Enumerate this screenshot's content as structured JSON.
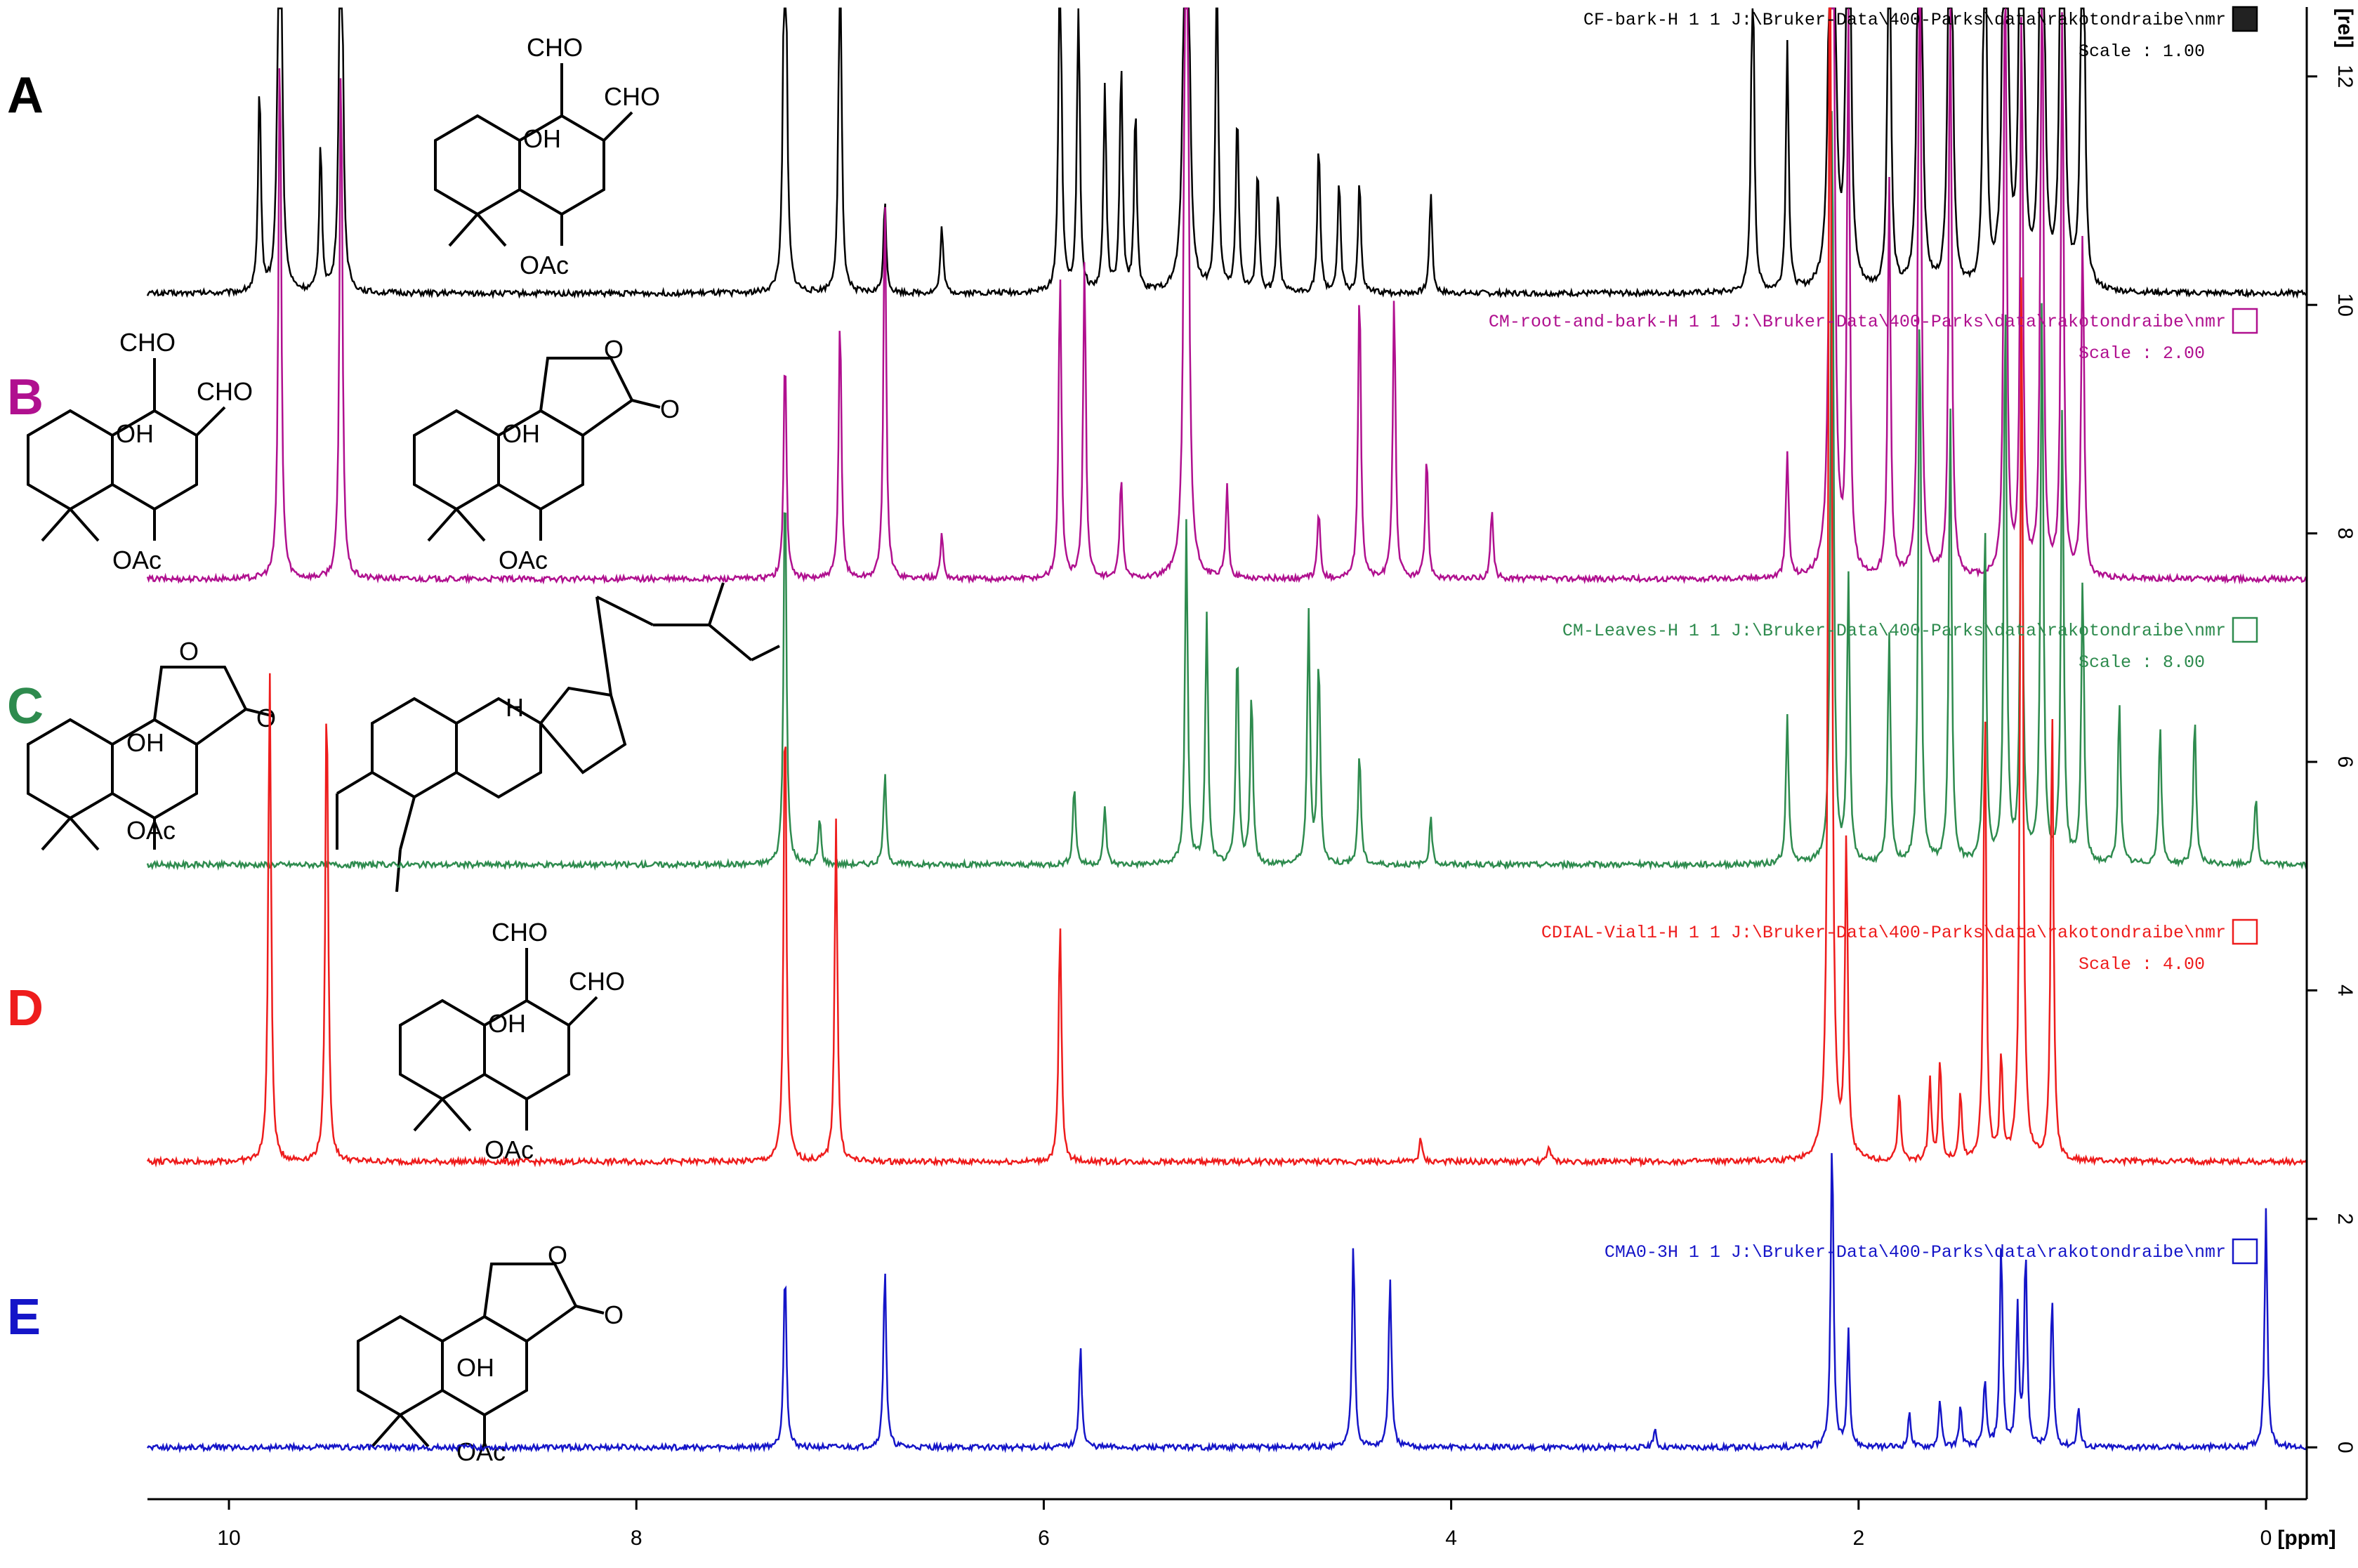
{
  "chart_data": {
    "type": "line",
    "title": "",
    "xlabel": "[ppm]",
    "ylabel": "[rel]",
    "x_reversed": true,
    "xlim": [
      10.4,
      -0.2
    ],
    "ylim": [
      -0.3,
      12.3
    ],
    "x_ticks": [
      10,
      8,
      6,
      4,
      2,
      0
    ],
    "y_ticks": [
      0,
      2,
      4,
      6,
      8,
      10,
      12
    ],
    "grid": false,
    "series": [
      {
        "letter": "A",
        "color": "#000000",
        "label": "CF-bark-H  1  1  J:\\Bruker-Data\\400-Parks\\data\\rakotondraibe\\nmr",
        "scale_text": "Scale : 1.00",
        "baseline": 10.1,
        "peaks": [
          [
            9.85,
            1.8
          ],
          [
            9.75,
            7.0
          ],
          [
            9.55,
            1.3
          ],
          [
            9.45,
            5.5
          ],
          [
            7.27,
            5.0
          ],
          [
            7.0,
            3.5
          ],
          [
            6.78,
            0.8
          ],
          [
            6.5,
            0.6
          ],
          [
            5.92,
            3.5
          ],
          [
            5.83,
            2.7
          ],
          [
            5.7,
            1.8
          ],
          [
            5.62,
            2.0
          ],
          [
            5.55,
            1.6
          ],
          [
            5.3,
            12.0
          ],
          [
            5.15,
            3.0
          ],
          [
            5.05,
            1.6
          ],
          [
            4.95,
            1.1
          ],
          [
            4.85,
            0.9
          ],
          [
            4.65,
            1.3
          ],
          [
            4.55,
            1.0
          ],
          [
            4.45,
            1.0
          ],
          [
            4.1,
            0.9
          ],
          [
            2.52,
            3.3
          ],
          [
            2.35,
            2.2
          ],
          [
            2.13,
            15.0
          ],
          [
            2.05,
            8.5
          ],
          [
            1.85,
            4.5
          ],
          [
            1.7,
            9.0
          ],
          [
            1.55,
            8.0
          ],
          [
            1.38,
            5.0
          ],
          [
            1.28,
            11.0
          ],
          [
            1.2,
            9.0
          ],
          [
            1.1,
            10.0
          ],
          [
            1.0,
            9.0
          ],
          [
            0.9,
            6.0
          ]
        ]
      },
      {
        "letter": "B",
        "color": "#b0108f",
        "label": "CM-root-and-bark-H  1  1  J:\\Bruker-Data\\400-Parks\\data\\rakotondraibe\\nmr",
        "scale_text": "Scale : 2.00",
        "baseline": 7.6,
        "peaks": [
          [
            9.75,
            4.8
          ],
          [
            9.45,
            4.6
          ],
          [
            7.27,
            2.0
          ],
          [
            7.0,
            2.3
          ],
          [
            6.78,
            3.4
          ],
          [
            6.5,
            0.4
          ],
          [
            5.92,
            2.7
          ],
          [
            5.8,
            2.8
          ],
          [
            5.62,
            0.9
          ],
          [
            5.3,
            12.0
          ],
          [
            5.1,
            0.8
          ],
          [
            4.65,
            0.6
          ],
          [
            4.45,
            2.6
          ],
          [
            4.28,
            2.5
          ],
          [
            4.12,
            1.1
          ],
          [
            3.8,
            0.6
          ],
          [
            2.35,
            1.1
          ],
          [
            2.13,
            15.0
          ],
          [
            2.05,
            5.0
          ],
          [
            1.85,
            3.5
          ],
          [
            1.7,
            7.0
          ],
          [
            1.55,
            5.5
          ],
          [
            1.28,
            6.0
          ],
          [
            1.2,
            5.0
          ],
          [
            1.1,
            6.0
          ],
          [
            1.0,
            5.0
          ],
          [
            0.9,
            3.0
          ]
        ]
      },
      {
        "letter": "C",
        "color": "#2e8b4e",
        "label": "CM-Leaves-H  1  1  J:\\Bruker-Data\\400-Parks\\data\\rakotondraibe\\nmr",
        "scale_text": "Scale : 8.00",
        "baseline": 5.1,
        "peaks": [
          [
            7.27,
            3.5
          ],
          [
            7.1,
            0.4
          ],
          [
            6.78,
            0.8
          ],
          [
            5.85,
            0.7
          ],
          [
            5.7,
            0.5
          ],
          [
            5.3,
            3.0
          ],
          [
            5.2,
            2.2
          ],
          [
            5.05,
            1.9
          ],
          [
            4.98,
            1.5
          ],
          [
            4.7,
            2.2
          ],
          [
            4.65,
            1.8
          ],
          [
            4.45,
            1.0
          ],
          [
            4.1,
            0.4
          ],
          [
            2.35,
            1.3
          ],
          [
            2.13,
            7.0
          ],
          [
            2.05,
            2.5
          ],
          [
            1.85,
            2.0
          ],
          [
            1.7,
            5.0
          ],
          [
            1.55,
            4.0
          ],
          [
            1.38,
            3.0
          ],
          [
            1.28,
            5.0
          ],
          [
            1.2,
            4.0
          ],
          [
            1.1,
            5.0
          ],
          [
            1.0,
            4.0
          ],
          [
            0.9,
            2.5
          ],
          [
            0.72,
            1.4
          ],
          [
            0.52,
            1.2
          ],
          [
            0.35,
            1.3
          ],
          [
            0.05,
            0.6
          ]
        ]
      },
      {
        "letter": "D",
        "color": "#ee1c1c",
        "label": "CDIAL-Vial1-H  1  1  J:\\Bruker-Data\\400-Parks\\data\\rakotondraibe\\nmr",
        "scale_text": "Scale : 4.00",
        "baseline": 2.5,
        "peaks": [
          [
            9.8,
            4.3
          ],
          [
            9.52,
            4.2
          ],
          [
            7.27,
            4.1
          ],
          [
            7.02,
            3.0
          ],
          [
            5.92,
            2.1
          ],
          [
            4.15,
            0.2
          ],
          [
            3.52,
            0.15
          ],
          [
            2.14,
            14.0
          ],
          [
            2.06,
            2.8
          ],
          [
            1.8,
            0.6
          ],
          [
            1.65,
            0.7
          ],
          [
            1.6,
            0.9
          ],
          [
            1.5,
            0.6
          ],
          [
            1.38,
            4.0
          ],
          [
            1.3,
            0.9
          ],
          [
            1.2,
            8.0
          ],
          [
            1.05,
            4.0
          ]
        ]
      },
      {
        "letter": "E",
        "color": "#1515c8",
        "label": "CMA0-3H  1  1  J:\\Bruker-Data\\400-Parks\\data\\rakotondraibe\\nmr",
        "scale_text": "",
        "baseline": 0.0,
        "peaks": [
          [
            7.27,
            1.6
          ],
          [
            6.78,
            1.6
          ],
          [
            5.82,
            0.9
          ],
          [
            4.48,
            1.8
          ],
          [
            4.3,
            1.5
          ],
          [
            3.0,
            0.15
          ],
          [
            2.13,
            2.7
          ],
          [
            2.05,
            1.0
          ],
          [
            1.75,
            0.3
          ],
          [
            1.6,
            0.4
          ],
          [
            1.5,
            0.35
          ],
          [
            1.38,
            0.6
          ],
          [
            1.3,
            1.8
          ],
          [
            1.22,
            1.2
          ],
          [
            1.18,
            1.7
          ],
          [
            1.05,
            1.3
          ],
          [
            0.92,
            0.35
          ],
          [
            0.0,
            2.1
          ]
        ]
      }
    ]
  }
}
